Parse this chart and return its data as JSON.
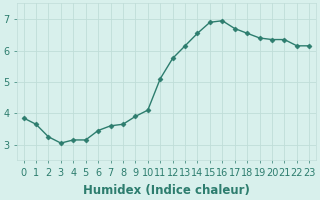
{
  "x": [
    0,
    1,
    2,
    3,
    4,
    5,
    6,
    7,
    8,
    9,
    10,
    11,
    12,
    13,
    14,
    15,
    16,
    17,
    18,
    19,
    20,
    21,
    22,
    23
  ],
  "y": [
    3.85,
    3.65,
    3.25,
    3.05,
    3.15,
    3.15,
    3.45,
    3.6,
    3.65,
    3.9,
    4.1,
    5.1,
    5.75,
    6.15,
    6.55,
    6.9,
    6.95,
    6.7,
    6.55,
    6.4,
    6.35,
    6.35,
    6.15,
    6.15
  ],
  "xlabel": "Humidex (Indice chaleur)",
  "ylim": [
    2.5,
    7.5
  ],
  "xlim": [
    -0.5,
    23.5
  ],
  "yticks": [
    3,
    4,
    5,
    6,
    7
  ],
  "xticks": [
    0,
    1,
    2,
    3,
    4,
    5,
    6,
    7,
    8,
    9,
    10,
    11,
    12,
    13,
    14,
    15,
    16,
    17,
    18,
    19,
    20,
    21,
    22,
    23
  ],
  "line_color": "#2d7d6e",
  "marker": "D",
  "marker_size": 2.5,
  "bg_color": "#d8f0ec",
  "grid_color": "#c0ddd8",
  "label_color": "#2d7d6e",
  "xlabel_fontsize": 8.5,
  "tick_fontsize": 7
}
